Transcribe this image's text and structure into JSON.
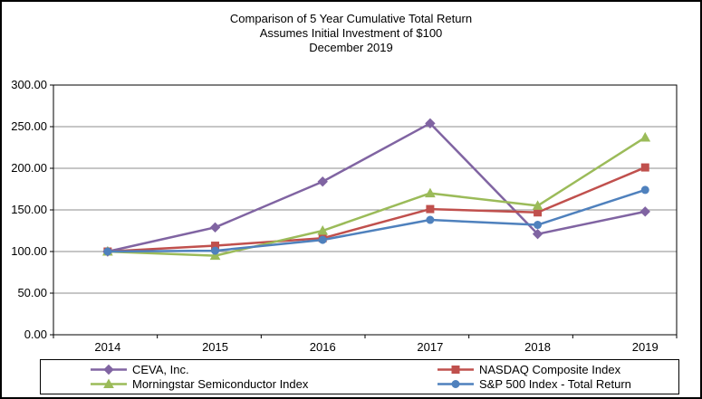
{
  "chart_data": {
    "type": "line",
    "title_lines": [
      "Comparison of 5 Year Cumulative Total Return",
      "Assumes Initial Investment of $100",
      "December 2019"
    ],
    "categories": [
      "2014",
      "2015",
      "2016",
      "2017",
      "2018",
      "2019"
    ],
    "series": [
      {
        "name": "CEVA, Inc.",
        "color": "#8064A2",
        "marker": "diamond",
        "values": [
          100,
          129,
          184,
          254,
          121,
          148
        ]
      },
      {
        "name": "NASDAQ Composite Index",
        "color": "#C0504D",
        "marker": "square",
        "values": [
          100,
          107,
          116,
          151,
          147,
          201
        ]
      },
      {
        "name": "Morningstar Semiconductor Index",
        "color": "#9BBB59",
        "marker": "triangle",
        "values": [
          100,
          95,
          125,
          170,
          155,
          237
        ]
      },
      {
        "name": "S&P 500 Index - Total Return",
        "color": "#4F81BD",
        "marker": "circle",
        "values": [
          100,
          101,
          114,
          138,
          132,
          174
        ]
      }
    ],
    "ylim": [
      0,
      300
    ],
    "ytick_step": 50,
    "ytick_labels": [
      "0.00",
      "50.00",
      "100.00",
      "150.00",
      "200.00",
      "250.00",
      "300.00"
    ],
    "grid": true,
    "gridline_color": "#8C8C8C",
    "axis_color": "#000000",
    "legend_position": "bottom"
  }
}
